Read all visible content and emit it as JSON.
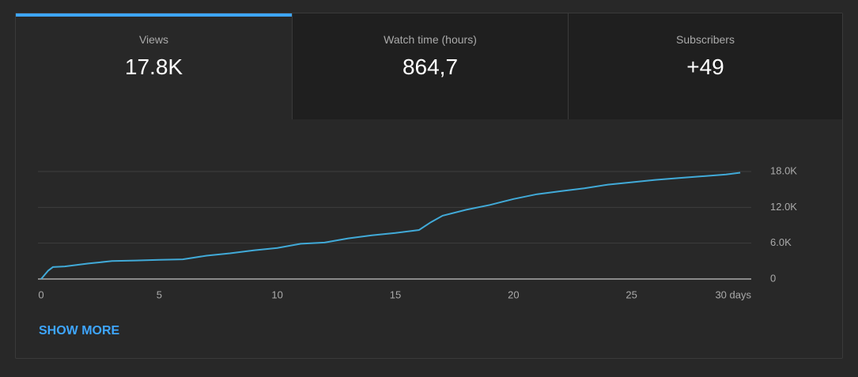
{
  "tabs": [
    {
      "label": "Views",
      "value": "17.8K"
    },
    {
      "label": "Watch time (hours)",
      "value": "864,7"
    },
    {
      "label": "Subscribers",
      "value": "+49"
    }
  ],
  "chart_data": {
    "type": "line",
    "x": [
      0,
      0.3,
      0.5,
      1,
      2,
      3,
      4,
      5,
      6,
      7,
      8,
      9,
      10,
      11,
      12,
      13,
      14,
      15,
      16,
      16.5,
      17,
      18,
      19,
      20,
      21,
      22,
      23,
      24,
      25,
      26,
      27,
      28,
      29,
      29.6
    ],
    "values": [
      0,
      1400,
      2000,
      2100,
      2600,
      3000,
      3100,
      3200,
      3300,
      3900,
      4300,
      4800,
      5200,
      5900,
      6100,
      6800,
      7300,
      7700,
      8200,
      9500,
      10600,
      11600,
      12400,
      13400,
      14200,
      14700,
      15200,
      15800,
      16200,
      16600,
      16900,
      17200,
      17500,
      17800
    ],
    "color": "#41aad8",
    "xlim": [
      0,
      30
    ],
    "xticks": [
      0,
      5,
      10,
      15,
      20,
      25,
      {
        "value": 30,
        "label": "30 days"
      }
    ],
    "ylim": [
      0,
      18000
    ],
    "yticks": [
      0,
      {
        "value": 6000,
        "label": "6.0K"
      },
      {
        "value": 12000,
        "label": "12.0K"
      },
      {
        "value": 18000,
        "label": "18.0K"
      }
    ],
    "grid": true
  },
  "link": "SHOW MORE"
}
